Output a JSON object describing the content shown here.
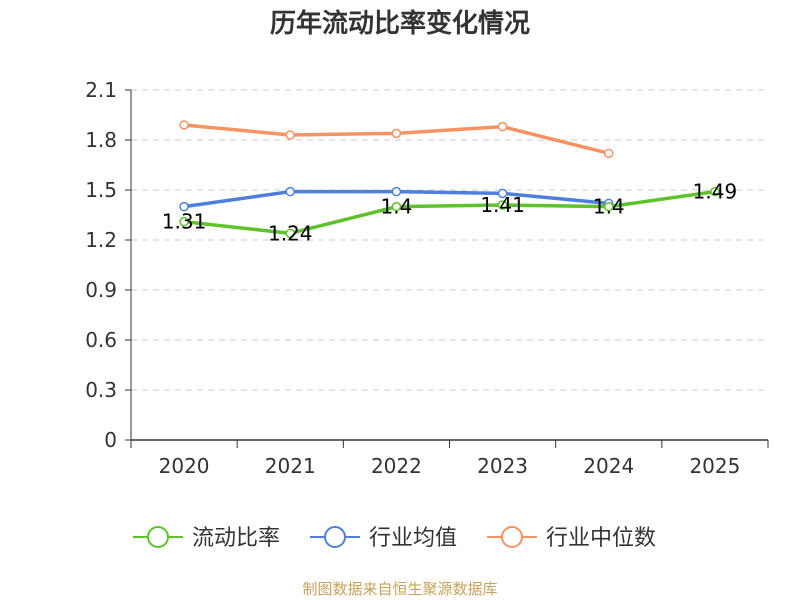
{
  "chart_data": {
    "type": "line",
    "title": "历年流动比率变化情况",
    "xlabel": "",
    "ylabel": "",
    "categories": [
      "2020",
      "2021",
      "2022",
      "2023",
      "2024",
      "2025"
    ],
    "ylim": [
      0,
      2.1
    ],
    "yticks": [
      "0",
      "0.3",
      "0.6",
      "0.9",
      "1.2",
      "1.5",
      "1.8",
      "2.1"
    ],
    "grid": true,
    "legend_position": "bottom-center",
    "series": [
      {
        "name": "流动比率",
        "color": "#5ec22c",
        "values": [
          1.31,
          1.24,
          1.4,
          1.41,
          1.4,
          1.49
        ],
        "labels": [
          "1.31",
          "1.24",
          "1.4",
          "1.41",
          "1.4",
          "1.49"
        ]
      },
      {
        "name": "行业均值",
        "color": "#4e7fdc",
        "values": [
          1.4,
          1.49,
          1.49,
          1.48,
          1.42,
          null
        ]
      },
      {
        "name": "行业中位数",
        "color": "#f59361",
        "values": [
          1.89,
          1.83,
          1.84,
          1.88,
          1.72,
          null
        ]
      }
    ]
  },
  "source": "制图数据来自恒生聚源数据库"
}
